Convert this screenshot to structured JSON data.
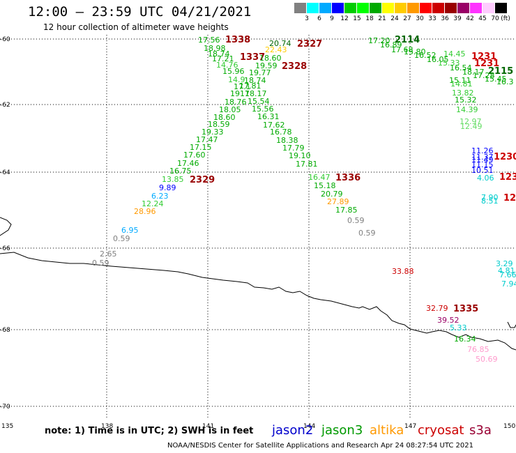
{
  "header": {
    "title": "12:00 – 23:59 UTC 04/21/2021",
    "subtitle": "12 hour collection of altimeter wave heights"
  },
  "legend": {
    "unit": "(ft)",
    "colors": [
      "#808080",
      "#00ffff",
      "#00aaff",
      "#0000ff",
      "#00cc00",
      "#00ff00",
      "#00aa00",
      "#ffff00",
      "#ffcc00",
      "#ff9900",
      "#ff0000",
      "#cc0000",
      "#990000",
      "#990066",
      "#ff33ff",
      "#ffccff",
      "#000000"
    ],
    "labels": [
      "3",
      "6",
      "9",
      "12",
      "15",
      "18",
      "21",
      "24",
      "27",
      "30",
      "33",
      "36",
      "39",
      "42",
      "45",
      "70"
    ]
  },
  "axes": {
    "y_labels": [
      "-60",
      "-62",
      "-64",
      "-66",
      "-68",
      "-70"
    ],
    "x_labels": [
      "135",
      "138",
      "141",
      "144",
      "147",
      "150"
    ]
  },
  "tracks": [
    {
      "t": "1338",
      "c": "#990000",
      "b": true
    },
    {
      "t": "2327",
      "c": "#990000",
      "b": true
    },
    {
      "t": "1337",
      "c": "#990000",
      "b": true
    },
    {
      "t": "2328",
      "c": "#990000",
      "b": true
    },
    {
      "t": "2114",
      "c": "#006600",
      "b": true
    },
    {
      "t": "1231",
      "c": "#cc0000",
      "b": true
    },
    {
      "t": "1231",
      "c": "#cc0000",
      "b": true
    },
    {
      "t": "2115",
      "c": "#006600",
      "b": true
    },
    {
      "t": "1336",
      "c": "#990000",
      "b": true
    },
    {
      "t": "2329",
      "c": "#990000",
      "b": true
    },
    {
      "t": "1230",
      "c": "#cc0000",
      "b": true
    },
    {
      "t": "123",
      "c": "#cc0000",
      "b": true
    },
    {
      "t": "12",
      "c": "#cc0000",
      "b": true
    },
    {
      "t": "1335",
      "c": "#990000",
      "b": true
    }
  ],
  "points": [
    {
      "v": "17.56",
      "c": "#00aa00"
    },
    {
      "v": "18.98",
      "c": "#00aa00"
    },
    {
      "v": "18.74",
      "c": "#00aa00"
    },
    {
      "v": "17.21",
      "c": "#00aa00"
    },
    {
      "v": "14.76",
      "c": "#33cc33"
    },
    {
      "v": "15.96",
      "c": "#00aa00"
    },
    {
      "v": "14.9",
      "c": "#33cc33"
    },
    {
      "v": "17.1",
      "c": "#00aa00"
    },
    {
      "v": "1917",
      "c": "#00aa00"
    },
    {
      "v": "18.76",
      "c": "#00aa00"
    },
    {
      "v": "18.05",
      "c": "#00aa00"
    },
    {
      "v": "18.60",
      "c": "#00aa00"
    },
    {
      "v": "18.59",
      "c": "#00aa00"
    },
    {
      "v": "19.33",
      "c": "#00aa00"
    },
    {
      "v": "17.47",
      "c": "#00aa00"
    },
    {
      "v": "17.15",
      "c": "#00aa00"
    },
    {
      "v": "17.60",
      "c": "#00aa00"
    },
    {
      "v": "17.46",
      "c": "#00aa00"
    },
    {
      "v": "16.75",
      "c": "#00aa00"
    },
    {
      "v": "13.85",
      "c": "#33cc33"
    },
    {
      "v": "9.89",
      "c": "#0000ff"
    },
    {
      "v": "6.23",
      "c": "#00aaff"
    },
    {
      "v": "12.24",
      "c": "#33cc33"
    },
    {
      "v": "28.96",
      "c": "#ff9900"
    },
    {
      "v": "6.95",
      "c": "#00aaff"
    },
    {
      "v": "0.59",
      "c": "#808080"
    },
    {
      "v": "2.65",
      "c": "#808080"
    },
    {
      "v": "0.59",
      "c": "#808080"
    },
    {
      "v": "20.74",
      "c": "#006600"
    },
    {
      "v": "22.43",
      "c": "#ffcc00"
    },
    {
      "v": "18.60",
      "c": "#00aa00"
    },
    {
      "v": "19.59",
      "c": "#00aa00"
    },
    {
      "v": "19.77",
      "c": "#00aa00"
    },
    {
      "v": "18.74",
      "c": "#00aa00"
    },
    {
      "v": "17.81",
      "c": "#00aa00"
    },
    {
      "v": "18.17",
      "c": "#00aa00"
    },
    {
      "v": "15.54",
      "c": "#00aa00"
    },
    {
      "v": "15.56",
      "c": "#00aa00"
    },
    {
      "v": "16.31",
      "c": "#00aa00"
    },
    {
      "v": "17.62",
      "c": "#00aa00"
    },
    {
      "v": "16.78",
      "c": "#00aa00"
    },
    {
      "v": "18.38",
      "c": "#00aa00"
    },
    {
      "v": "17.79",
      "c": "#00aa00"
    },
    {
      "v": "19.10",
      "c": "#00aa00"
    },
    {
      "v": "17.81",
      "c": "#00aa00"
    },
    {
      "v": "16.47",
      "c": "#33cc33"
    },
    {
      "v": "15.18",
      "c": "#00aa00"
    },
    {
      "v": "20.79",
      "c": "#00aa00"
    },
    {
      "v": "27.89",
      "c": "#ff9900"
    },
    {
      "v": "17.85",
      "c": "#00aa00"
    },
    {
      "v": "0.59",
      "c": "#808080"
    },
    {
      "v": "0.59",
      "c": "#808080"
    },
    {
      "v": "17.20",
      "c": "#00aa00"
    },
    {
      "v": "16.89",
      "c": "#00aa00"
    },
    {
      "v": "17.68",
      "c": "#00aa00"
    },
    {
      "v": "15.80",
      "c": "#00aa00"
    },
    {
      "v": "16.52",
      "c": "#00aa00"
    },
    {
      "v": "16.05",
      "c": "#00aa00"
    },
    {
      "v": "15.33",
      "c": "#33cc33"
    },
    {
      "v": "14.45",
      "c": "#33cc33"
    },
    {
      "v": "16.54",
      "c": "#00aa00"
    },
    {
      "v": "18.17",
      "c": "#00aa00"
    },
    {
      "v": "17.28",
      "c": "#00aa00"
    },
    {
      "v": "15.45",
      "c": "#00aa00"
    },
    {
      "v": "16.3",
      "c": "#00aa00"
    },
    {
      "v": "15.11",
      "c": "#00aa00"
    },
    {
      "v": "14.81",
      "c": "#33cc33"
    },
    {
      "v": "13.82",
      "c": "#33cc33"
    },
    {
      "v": "15.32",
      "c": "#00aa00"
    },
    {
      "v": "14.39",
      "c": "#33cc33"
    },
    {
      "v": "12.97",
      "c": "#66dd66"
    },
    {
      "v": "12.49",
      "c": "#66dd66"
    },
    {
      "v": "11.26",
      "c": "#0000ff"
    },
    {
      "v": "11.37",
      "c": "#0000ff"
    },
    {
      "v": "11.49",
      "c": "#0000ff"
    },
    {
      "v": "11.15",
      "c": "#0000ff"
    },
    {
      "v": "10.51",
      "c": "#0000ff"
    },
    {
      "v": "4.06",
      "c": "#00cccc"
    },
    {
      "v": "7.90",
      "c": "#00cccc"
    },
    {
      "v": "8.51",
      "c": "#00cccc"
    },
    {
      "v": "3.29",
      "c": "#00cccc"
    },
    {
      "v": "4.81",
      "c": "#00cccc"
    },
    {
      "v": "7.66",
      "c": "#00cccc"
    },
    {
      "v": "7.94",
      "c": "#00cccc"
    },
    {
      "v": "33.88",
      "c": "#cc0000"
    },
    {
      "v": "32.79",
      "c": "#cc0000"
    },
    {
      "v": "39.52",
      "c": "#990066"
    },
    {
      "v": "5.33",
      "c": "#00cccc"
    },
    {
      "v": "16.34",
      "c": "#00aa00"
    },
    {
      "v": "76.85",
      "c": "#ff99cc"
    },
    {
      "v": "50.69",
      "c": "#ff99cc"
    }
  ],
  "footer": {
    "note": "note:  1) Time is in UTC;  2) SWH is in feet",
    "satellites": [
      {
        "name": "jason2",
        "color": "#0000cc"
      },
      {
        "name": "jason3",
        "color": "#009900"
      },
      {
        "name": "altika",
        "color": "#ff9900"
      },
      {
        "name": "cryosat",
        "color": "#cc0000"
      },
      {
        "name": "s3a",
        "color": "#990033"
      }
    ],
    "credit": "NOAA/NESDIS Center for Satellite Applications and Research     Apr 24 08:27:54 UTC 2021"
  }
}
